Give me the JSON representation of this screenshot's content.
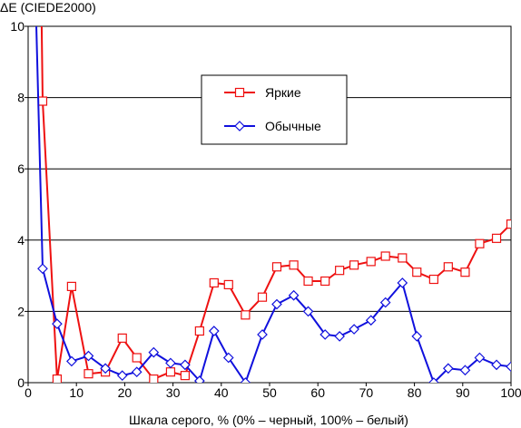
{
  "chart_data": {
    "type": "line",
    "title": "",
    "ylabel": "ΔE (CIEDE2000)",
    "xlabel": "Шкала серого, % (0% – черный, 100% – белый)",
    "xlim": [
      0,
      100
    ],
    "ylim": [
      0,
      10
    ],
    "xticks": [
      0,
      10,
      20,
      30,
      40,
      50,
      60,
      70,
      80,
      90,
      100
    ],
    "yticks": [
      0,
      2,
      4,
      6,
      8,
      10
    ],
    "grid": "horizontal",
    "legend_position": "upper-center",
    "series": [
      {
        "name": "Яркие",
        "color": "#ee1111",
        "marker": "square",
        "points": [
          [
            2.7,
            11.0
          ],
          [
            3.0,
            7.9
          ],
          [
            6.0,
            0.1
          ],
          [
            9.0,
            2.7
          ],
          [
            12.5,
            0.25
          ],
          [
            16.0,
            0.3
          ],
          [
            19.5,
            1.25
          ],
          [
            22.5,
            0.7
          ],
          [
            26.0,
            0.1
          ],
          [
            29.5,
            0.3
          ],
          [
            32.5,
            0.2
          ],
          [
            35.5,
            1.45
          ],
          [
            38.5,
            2.8
          ],
          [
            41.5,
            2.75
          ],
          [
            45.0,
            1.9
          ],
          [
            48.5,
            2.4
          ],
          [
            51.5,
            3.25
          ],
          [
            55.0,
            3.3
          ],
          [
            58.0,
            2.85
          ],
          [
            61.5,
            2.85
          ],
          [
            64.5,
            3.15
          ],
          [
            67.5,
            3.3
          ],
          [
            71.0,
            3.4
          ],
          [
            74.0,
            3.55
          ],
          [
            77.5,
            3.5
          ],
          [
            80.5,
            3.1
          ],
          [
            84.0,
            2.9
          ],
          [
            87.0,
            3.25
          ],
          [
            90.5,
            3.1
          ],
          [
            93.5,
            3.9
          ],
          [
            97.0,
            4.05
          ],
          [
            100.0,
            4.45
          ]
        ]
      },
      {
        "name": "Обычные",
        "color": "#1010dd",
        "marker": "diamond",
        "points": [
          [
            1.5,
            11.0
          ],
          [
            3.0,
            3.2
          ],
          [
            6.0,
            1.65
          ],
          [
            9.0,
            0.6
          ],
          [
            12.5,
            0.75
          ],
          [
            16.0,
            0.4
          ],
          [
            19.5,
            0.2
          ],
          [
            22.5,
            0.3
          ],
          [
            26.0,
            0.85
          ],
          [
            29.5,
            0.55
          ],
          [
            32.5,
            0.5
          ],
          [
            35.5,
            0.05
          ],
          [
            38.5,
            1.45
          ],
          [
            41.5,
            0.7
          ],
          [
            45.0,
            0.0
          ],
          [
            48.5,
            1.35
          ],
          [
            51.5,
            2.2
          ],
          [
            55.0,
            2.45
          ],
          [
            58.0,
            2.0
          ],
          [
            61.5,
            1.35
          ],
          [
            64.5,
            1.3
          ],
          [
            67.5,
            1.5
          ],
          [
            71.0,
            1.75
          ],
          [
            74.0,
            2.25
          ],
          [
            77.5,
            2.8
          ],
          [
            80.5,
            1.3
          ],
          [
            84.0,
            0.0
          ],
          [
            87.0,
            0.4
          ],
          [
            90.5,
            0.35
          ],
          [
            93.5,
            0.7
          ],
          [
            97.0,
            0.5
          ],
          [
            100.0,
            0.45
          ]
        ]
      }
    ]
  }
}
